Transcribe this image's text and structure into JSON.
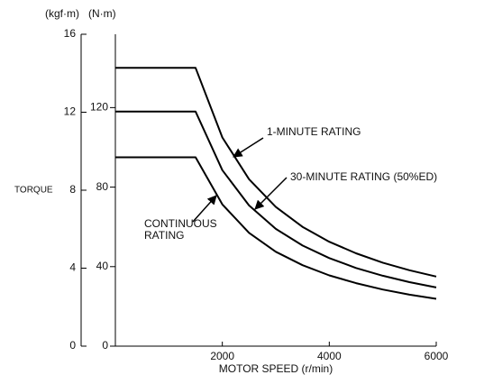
{
  "chart_data": {
    "type": "line",
    "y_unit": "(kgf·m)",
    "y2_unit": "(N·m)",
    "ylabel": "TORQUE",
    "xlabel": "MOTOR SPEED (r/min)",
    "x": [
      0,
      1500,
      2000,
      2500,
      3000,
      3500,
      4000,
      4500,
      5000,
      5500,
      6000
    ],
    "xlim": [
      0,
      6000
    ],
    "xticks": [
      2000,
      4000,
      6000
    ],
    "ylim": [
      0,
      16
    ],
    "yticks": [
      0,
      4,
      8,
      12,
      16
    ],
    "y2lim": [
      0,
      156.9
    ],
    "y2ticks": [
      0,
      40,
      80,
      120
    ],
    "series": [
      {
        "name": "1-MINUTE RATING",
        "color": "#000000",
        "axis": "y2",
        "values": [
          140,
          140,
          105,
          84,
          70,
          60,
          52.5,
          46.7,
          42,
          38.2,
          35
        ]
      },
      {
        "name": "30-MINUTE RATING (50%ED)",
        "color": "#000000",
        "axis": "y2",
        "values": [
          118,
          118,
          88.5,
          70.8,
          59,
          50.6,
          44.3,
          39.3,
          35.4,
          32.2,
          29.5
        ]
      },
      {
        "name": "CONTINUOUS RATING",
        "color": "#000000",
        "axis": "y2",
        "values": [
          95,
          95,
          71.3,
          57,
          47.5,
          40.7,
          35.6,
          31.7,
          28.5,
          25.9,
          23.8
        ]
      }
    ]
  }
}
